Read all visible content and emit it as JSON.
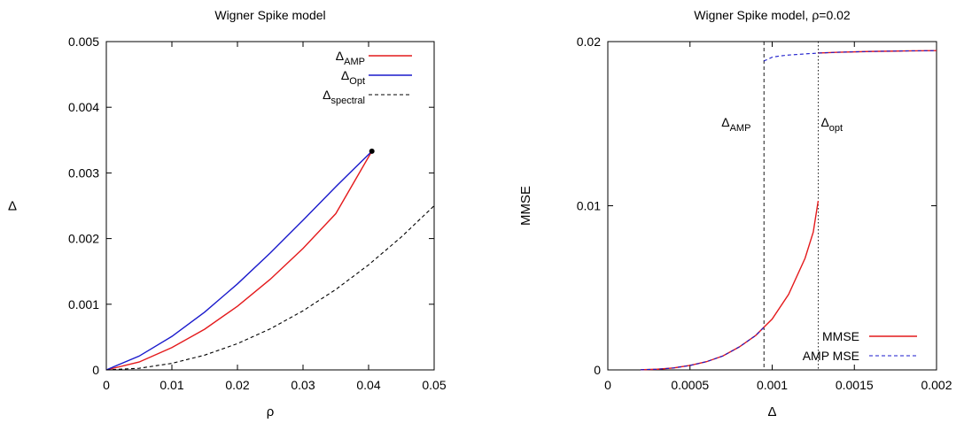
{
  "chart_data": [
    {
      "type": "line",
      "title": "Wigner Spike model",
      "xlabel": "ρ",
      "ylabel": "Δ",
      "xlim": [
        0,
        0.05
      ],
      "ylim": [
        0,
        0.005
      ],
      "x_ticks": [
        "0",
        "0.01",
        "0.02",
        "0.03",
        "0.04",
        "0.05"
      ],
      "y_ticks": [
        "0",
        "0.001",
        "0.002",
        "0.003",
        "0.004",
        "0.005"
      ],
      "grid": false,
      "legend_position": "top-right",
      "series": [
        {
          "name": "Δ",
          "name_sub": "AMP",
          "color": "#e41a1c",
          "dash": "solid",
          "x": [
            0,
            0.005,
            0.01,
            0.015,
            0.02,
            0.025,
            0.03,
            0.035,
            0.0405
          ],
          "y": [
            0,
            0.00012,
            0.00034,
            0.00062,
            0.00097,
            0.00138,
            0.00185,
            0.00238,
            0.00333
          ]
        },
        {
          "name": "Δ",
          "name_sub": "Opt",
          "color": "#1a1acc",
          "dash": "solid",
          "x": [
            0,
            0.005,
            0.01,
            0.015,
            0.02,
            0.025,
            0.03,
            0.035,
            0.0405
          ],
          "y": [
            0,
            0.00021,
            0.00051,
            0.00088,
            0.00131,
            0.00178,
            0.00228,
            0.00279,
            0.00333
          ]
        },
        {
          "name": "Δ",
          "name_sub": "spectral",
          "color": "#000000",
          "dash": "dashed",
          "x": [
            0,
            0.005,
            0.01,
            0.015,
            0.02,
            0.025,
            0.03,
            0.035,
            0.04,
            0.045,
            0.05
          ],
          "y": [
            0,
            2.5e-05,
            0.0001,
            0.000225,
            0.0004,
            0.000625,
            0.0009,
            0.001225,
            0.0016,
            0.002025,
            0.0025
          ]
        }
      ],
      "points": [
        {
          "x": 0.0405,
          "y": 0.00333,
          "color": "#000000"
        }
      ]
    },
    {
      "type": "line",
      "title": "Wigner Spike model, ρ=0.02",
      "xlabel": "Δ",
      "ylabel": "MMSE",
      "xlim": [
        0,
        0.002
      ],
      "ylim": [
        0,
        0.02
      ],
      "x_ticks": [
        "0",
        "0.0005",
        "0.001",
        "0.0015",
        "0.002"
      ],
      "y_ticks": [
        "0",
        "0.01",
        "0.02"
      ],
      "grid": false,
      "legend_position": "bottom-right",
      "series": [
        {
          "name": "MMSE",
          "color": "#e41a1c",
          "dash": "solid",
          "segments": [
            {
              "x": [
                0.0002,
                0.0003,
                0.0004,
                0.0005,
                0.0006,
                0.0007,
                0.0008,
                0.0009,
                0.00095,
                0.001,
                0.0011,
                0.0012,
                0.00125,
                0.00128
              ],
              "y": [
                1e-05,
                4e-05,
                0.00012,
                0.00027,
                0.0005,
                0.00085,
                0.0014,
                0.0021,
                0.0026,
                0.0031,
                0.0046,
                0.0068,
                0.0084,
                0.0103
              ]
            },
            {
              "x": [
                0.00128,
                0.0014,
                0.0016,
                0.0018,
                0.002
              ],
              "y": [
                0.0193,
                0.01935,
                0.0194,
                0.01943,
                0.01945
              ]
            }
          ]
        },
        {
          "name": "AMP MSE",
          "color": "#1a1acc",
          "dash": "dashed",
          "segments": [
            {
              "x": [
                0.0002,
                0.0003,
                0.0004,
                0.0005,
                0.0006,
                0.0007,
                0.0008,
                0.0009,
                0.00095
              ],
              "y": [
                1e-05,
                4e-05,
                0.00012,
                0.00027,
                0.0005,
                0.00085,
                0.0014,
                0.0021,
                0.0026
              ]
            },
            {
              "x": [
                0.00095,
                0.000955,
                0.00097,
                0.001,
                0.00105,
                0.0011,
                0.0012,
                0.00128,
                0.0014,
                0.0016,
                0.0018,
                0.002
              ],
              "y": [
                0.0188,
                0.01885,
                0.0189,
                0.01905,
                0.01913,
                0.01918,
                0.01925,
                0.0193,
                0.01935,
                0.0194,
                0.01943,
                0.01945
              ]
            }
          ]
        }
      ],
      "vlines": [
        {
          "x": 0.00095,
          "dash": "dashed",
          "label": "Δ",
          "label_sub": "AMP",
          "label_side": "left"
        },
        {
          "x": 0.00128,
          "dash": "dotted",
          "label": "Δ",
          "label_sub": "opt",
          "label_side": "right"
        }
      ]
    }
  ]
}
